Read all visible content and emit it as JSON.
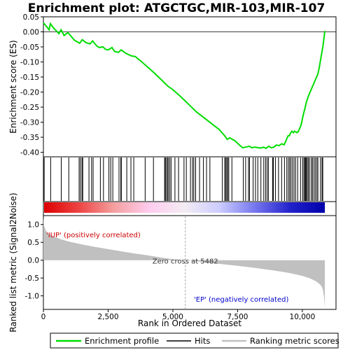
{
  "chart_data": {
    "type": "line",
    "title": "Enrichment plot: ATGCTGC,MIR-103,MIR-107",
    "x_axis": {
      "label": "Rank in Ordered Dataset",
      "range": [
        0,
        11300
      ],
      "ticks": [
        0,
        2500,
        5000,
        7500,
        10000
      ],
      "tick_labels": [
        "0",
        "2,500",
        "5,000",
        "7,500",
        "10,000"
      ]
    },
    "top_panel": {
      "ylabel": "Enrichment score (ES)",
      "ylim": [
        -0.415,
        0.05
      ],
      "ticks": [
        0.05,
        0.0,
        -0.05,
        -0.1,
        -0.15,
        -0.2,
        -0.25,
        -0.3,
        -0.35,
        -0.4
      ],
      "tick_labels": [
        "0.05",
        "0.00",
        "-0.05",
        "-0.10",
        "-0.15",
        "-0.20",
        "-0.25",
        "-0.30",
        "-0.35",
        "-0.40"
      ],
      "series": [
        {
          "name": "Enrichment profile",
          "color": "#00dd00",
          "x": [
            0,
            150,
            220,
            270,
            400,
            600,
            680,
            800,
            950,
            1000,
            1200,
            1400,
            1500,
            1650,
            1800,
            1900,
            2050,
            2150,
            2300,
            2400,
            2500,
            2650,
            2750,
            2900,
            3000,
            3200,
            3400,
            3550,
            3800,
            4000,
            4300,
            4600,
            4800,
            5000,
            5300,
            5600,
            5900,
            6200,
            6500,
            6800,
            7000,
            7100,
            7200,
            7400,
            7600,
            7700,
            7850,
            7950,
            8050,
            8150,
            8250,
            8400,
            8500,
            8600,
            8700,
            8800,
            8900,
            9000,
            9100,
            9200,
            9300,
            9350,
            9400,
            9450,
            9500,
            9550,
            9600,
            9650,
            9700,
            9800,
            9850,
            9900,
            9950,
            10000,
            10050,
            10100,
            10150,
            10200,
            10250,
            10300,
            10350,
            10400,
            10450,
            10500,
            10550,
            10600,
            10650,
            10700,
            10750,
            10800,
            10850,
            10870
          ],
          "y": [
            0.03,
            0.015,
            0.007,
            0.027,
            0.012,
            -0.006,
            0.007,
            -0.012,
            -0.002,
            -0.008,
            -0.028,
            -0.038,
            -0.026,
            -0.036,
            -0.04,
            -0.03,
            -0.046,
            -0.052,
            -0.05,
            -0.058,
            -0.06,
            -0.052,
            -0.065,
            -0.068,
            -0.06,
            -0.072,
            -0.08,
            -0.082,
            -0.1,
            -0.115,
            -0.138,
            -0.163,
            -0.18,
            -0.192,
            -0.215,
            -0.24,
            -0.265,
            -0.285,
            -0.305,
            -0.325,
            -0.345,
            -0.357,
            -0.352,
            -0.362,
            -0.378,
            -0.385,
            -0.382,
            -0.38,
            -0.385,
            -0.383,
            -0.384,
            -0.386,
            -0.383,
            -0.387,
            -0.38,
            -0.385,
            -0.383,
            -0.376,
            -0.378,
            -0.372,
            -0.375,
            -0.365,
            -0.355,
            -0.345,
            -0.345,
            -0.335,
            -0.33,
            -0.335,
            -0.33,
            -0.335,
            -0.33,
            -0.32,
            -0.31,
            -0.29,
            -0.27,
            -0.255,
            -0.235,
            -0.222,
            -0.21,
            -0.2,
            -0.19,
            -0.18,
            -0.17,
            -0.16,
            -0.15,
            -0.14,
            -0.12,
            -0.095,
            -0.07,
            -0.045,
            -0.01,
            0.003
          ]
        }
      ]
    },
    "hits_panel": {
      "name": "Hits",
      "ranks": [
        30,
        280,
        690,
        980,
        1380,
        1430,
        1490,
        1520,
        1760,
        1860,
        1920,
        2200,
        2320,
        2530,
        2600,
        2680,
        2920,
        2990,
        3010,
        3220,
        3380,
        3490,
        3930,
        4250,
        4680,
        4710,
        4750,
        4800,
        4820,
        4880,
        4930,
        5080,
        5220,
        5430,
        5520,
        5680,
        5760,
        5810,
        5880,
        6030,
        6180,
        6300,
        6430,
        6910,
        7000,
        7040,
        7080,
        7120,
        7160,
        7280,
        7720,
        7810,
        7920,
        7960,
        8100,
        8190,
        8280,
        8400,
        8510,
        8580,
        8640,
        8690,
        8850,
        8880,
        8960,
        9080,
        9200,
        9310,
        9400,
        9460,
        9510,
        9560,
        9620,
        9680,
        9740,
        9820,
        9930,
        10010,
        10060,
        10100,
        10120,
        10150,
        10190,
        10230,
        10280,
        10350,
        10390,
        10450,
        10500,
        10560,
        10600,
        10700,
        10760,
        10790
      ]
    },
    "heat_bar": {
      "gradient_stops": [
        "#dd0000",
        "#ee4444",
        "#f4a0a0",
        "#ffccee",
        "#f3ecf3",
        "#ccccff",
        "#7777ee",
        "#2222cc",
        "#0000aa"
      ]
    },
    "bottom_panel": {
      "ylabel": "Ranked list metric (Signal2Noise)",
      "ylim": [
        -1.38,
        1.25
      ],
      "ticks": [
        1.0,
        0.5,
        0.0,
        -0.5,
        -1.0
      ],
      "tick_labels": [
        "1.0",
        "0.5",
        "0.0",
        "-0.5",
        "-1.0"
      ],
      "fill_color": "#c0c0c0",
      "metric_x": [
        0,
        30,
        100,
        200,
        400,
        700,
        1000,
        1500,
        2000,
        2500,
        3000,
        3500,
        4000,
        4500,
        5000,
        5482,
        6000,
        6500,
        7000,
        7500,
        8000,
        8500,
        9000,
        9500,
        10000,
        10300,
        10500,
        10650,
        10750,
        10800,
        10840,
        10870
      ],
      "metric_y": [
        1.2,
        0.95,
        0.82,
        0.74,
        0.66,
        0.58,
        0.52,
        0.44,
        0.37,
        0.31,
        0.25,
        0.19,
        0.14,
        0.08,
        0.03,
        0.0,
        -0.04,
        -0.08,
        -0.12,
        -0.16,
        -0.2,
        -0.25,
        -0.3,
        -0.36,
        -0.44,
        -0.51,
        -0.58,
        -0.66,
        -0.74,
        -0.85,
        -1.05,
        -1.33
      ],
      "zero_cross_label": "Zero cross at 5482",
      "zero_cross_rank": 5482,
      "pos_label": "'IUP' (positively correlated)",
      "pos_color": "#cc0000",
      "neg_label": "'EP' (negatively correlated)",
      "neg_color": "#0000cc"
    },
    "legend": {
      "items": [
        {
          "label": "Enrichment profile",
          "color": "#00dd00"
        },
        {
          "label": "Hits",
          "color": "#000000"
        },
        {
          "label": "Ranking metric scores",
          "color": "#c0c0c0"
        }
      ]
    }
  }
}
